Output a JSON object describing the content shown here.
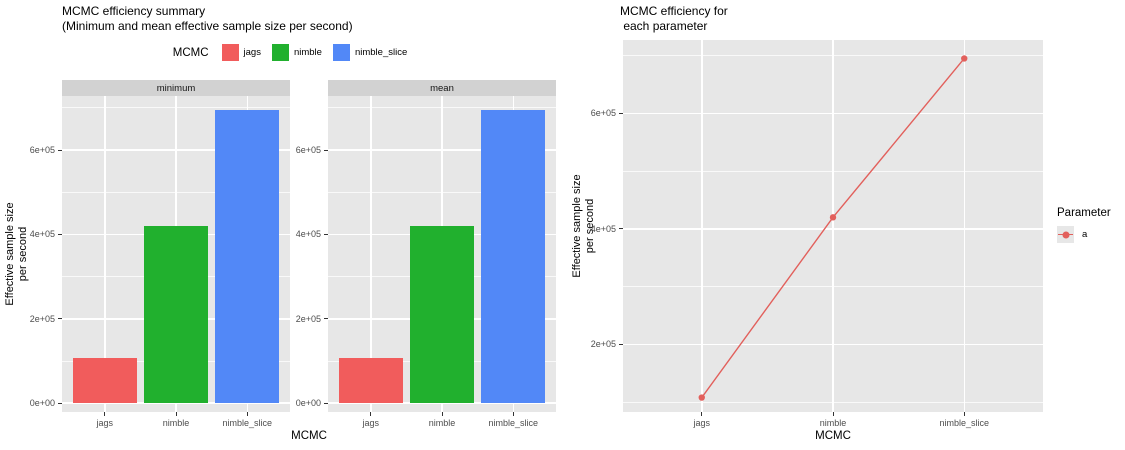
{
  "chart_data": [
    {
      "type": "bar",
      "title": "MCMC efficiency summary\n(Minimum and mean effective sample size per second)",
      "legend_title": "MCMC",
      "legend_position": "top",
      "facets": [
        "minimum",
        "mean"
      ],
      "categories": [
        "jags",
        "nimble",
        "nimble_slice"
      ],
      "series": [
        {
          "facet": "minimum",
          "values": [
            108000,
            420000,
            695000
          ]
        },
        {
          "facet": "mean",
          "values": [
            108000,
            420000,
            695000
          ]
        }
      ],
      "colors": [
        "#F15C5C",
        "#21B02E",
        "#5288F7"
      ],
      "xlabel": "MCMC",
      "ylabel": "Effective sample size\nper second",
      "ylim": [
        -21000,
        728000
      ],
      "yticks": {
        "values": [
          0,
          200000,
          400000,
          600000
        ],
        "labels": [
          "0e+00",
          "2e+05",
          "4e+05",
          "6e+05"
        ],
        "minor": [
          100000,
          300000,
          500000,
          700000
        ]
      },
      "grid": true
    },
    {
      "type": "line",
      "title": "MCMC efficiency for\n each parameter",
      "legend_title": "Parameter",
      "legend_position": "right",
      "categories": [
        "jags",
        "nimble",
        "nimble_slice"
      ],
      "series": [
        {
          "name": "a",
          "values": [
            108000,
            420000,
            695000
          ],
          "color": "#E2605C"
        }
      ],
      "xlabel": "MCMC",
      "ylabel": "Effective sample size\nper second",
      "ylim": [
        83000,
        727000
      ],
      "yticks": {
        "values": [
          200000,
          400000,
          600000
        ],
        "labels": [
          "2e+05",
          "4e+05",
          "6e+05"
        ],
        "minor": [
          100000,
          300000,
          500000,
          700000
        ]
      },
      "grid": true
    }
  ],
  "theme": {
    "panel_bg": "#E7E7E7",
    "strip_bg": "#D2D2D2",
    "grid_color": "#FFFFFF",
    "tick_label_color": "#4D4D4D",
    "text_color": "#000000"
  }
}
